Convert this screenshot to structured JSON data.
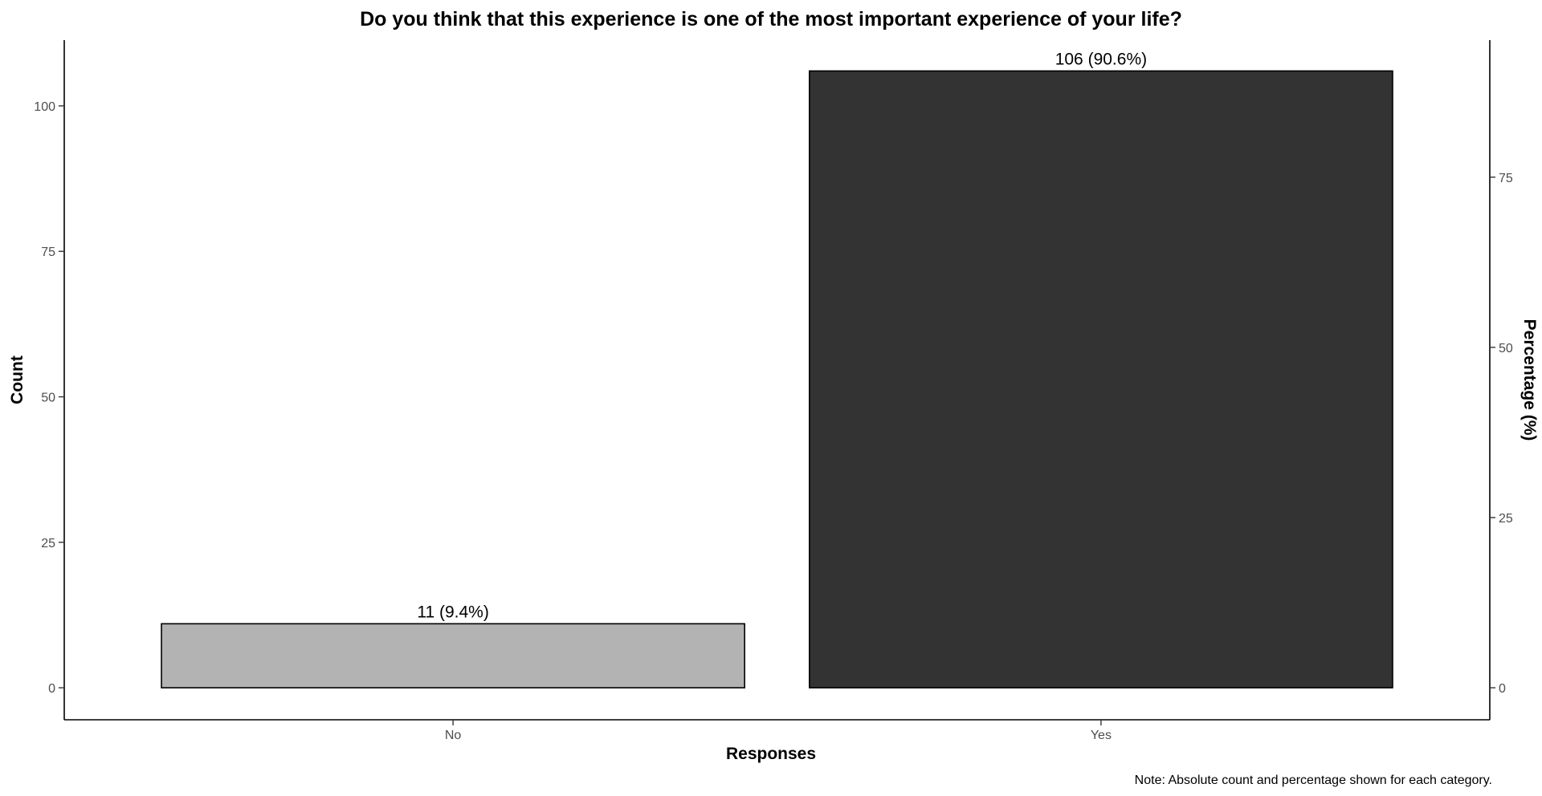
{
  "chart_data": {
    "type": "bar",
    "title": "Do you think that this experience is one of the most important experience of your life?",
    "xlabel": "Responses",
    "ylabel": "Count",
    "y2label": "Percentage (%)",
    "categories": [
      "No",
      "Yes"
    ],
    "values": [
      11,
      106
    ],
    "percentages": [
      9.4,
      90.6
    ],
    "data_labels": [
      "11 (9.4%)",
      "106 (90.6%)"
    ],
    "bar_colors": [
      "#b3b3b3",
      "#333333"
    ],
    "ylim": [
      -5.5,
      111.3
    ],
    "y_ticks": [
      0,
      25,
      50,
      75,
      100
    ],
    "y2_ticks": [
      0,
      25,
      50,
      75
    ],
    "grid": false,
    "note": "Note: Absolute count and percentage shown for each category."
  }
}
